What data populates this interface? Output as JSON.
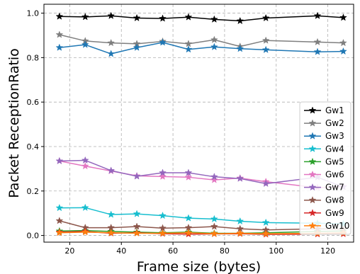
{
  "chart_data": {
    "type": "line",
    "title": "",
    "xlabel": "Frame size (bytes)",
    "ylabel": "Packet ReceptionRatio",
    "xlim": [
      10,
      130
    ],
    "ylim": [
      -0.03,
      1.04
    ],
    "xticks": [
      20,
      40,
      60,
      80,
      100,
      120
    ],
    "yticks": [
      0.0,
      0.2,
      0.4,
      0.6,
      0.8,
      1.0
    ],
    "xtick_labels": [
      "20",
      "40",
      "60",
      "80",
      "100",
      "120"
    ],
    "ytick_labels": [
      "0.0",
      "0.2",
      "0.4",
      "0.6",
      "0.8",
      "1.0"
    ],
    "grid": true,
    "legend_position": "bottom-right",
    "marker": "star",
    "x": [
      16,
      26,
      36,
      46,
      56,
      66,
      76,
      86,
      96,
      116,
      126
    ],
    "series": [
      {
        "name": "Gw1",
        "color": "#000000",
        "values": [
          0.985,
          0.983,
          0.988,
          0.978,
          0.976,
          0.982,
          0.972,
          0.965,
          0.978,
          0.988,
          0.98
        ]
      },
      {
        "name": "Gw2",
        "color": "#7f7f7f",
        "values": [
          0.903,
          0.875,
          0.866,
          0.862,
          0.873,
          0.862,
          0.88,
          0.85,
          0.877,
          0.87,
          0.866
        ]
      },
      {
        "name": "Gw3",
        "color": "#1f77b4",
        "values": [
          0.845,
          0.858,
          0.817,
          0.845,
          0.868,
          0.837,
          0.848,
          0.84,
          0.835,
          0.826,
          0.828
        ]
      },
      {
        "name": "Gw4",
        "color": "#17becf",
        "values": [
          0.124,
          0.125,
          0.094,
          0.097,
          0.089,
          0.078,
          0.074,
          0.064,
          0.058,
          0.055,
          0.052
        ]
      },
      {
        "name": "Gw5",
        "color": "#2ca02c",
        "values": [
          0.02,
          0.022,
          0.018,
          0.015,
          0.012,
          0.015,
          0.01,
          0.01,
          0.012,
          0.018,
          0.02
        ]
      },
      {
        "name": "Gw6",
        "color": "#e377c2",
        "values": [
          0.335,
          0.312,
          0.29,
          0.268,
          0.265,
          0.262,
          0.25,
          0.258,
          0.242,
          0.215,
          0.22
        ]
      },
      {
        "name": "Gw7",
        "color": "#9467bd",
        "values": [
          0.335,
          0.338,
          0.292,
          0.266,
          0.282,
          0.282,
          0.264,
          0.256,
          0.233,
          0.262,
          0.218
        ]
      },
      {
        "name": "Gw8",
        "color": "#8c564b",
        "values": [
          0.066,
          0.035,
          0.035,
          0.04,
          0.033,
          0.035,
          0.04,
          0.03,
          0.025,
          0.03,
          0.028
        ]
      },
      {
        "name": "Gw9",
        "color": "#d62728",
        "values": [
          0.015,
          0.018,
          0.01,
          0.012,
          0.008,
          0.006,
          0.007,
          0.008,
          0.005,
          0.006,
          0.007
        ]
      },
      {
        "name": "Gw10",
        "color": "#ff7f0e",
        "values": [
          0.012,
          0.015,
          0.012,
          0.01,
          0.01,
          0.012,
          0.008,
          0.01,
          0.008,
          0.01,
          0.012
        ]
      }
    ]
  }
}
